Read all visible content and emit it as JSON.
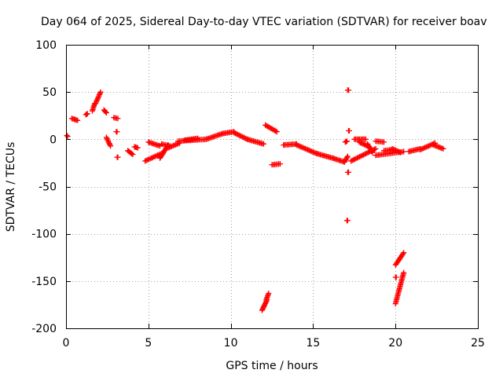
{
  "chart_data": {
    "type": "scatter",
    "title": "Day 064 of 2025, Sidereal Day-to-day VTEC variation (SDTVAR) for receiver boav",
    "xlabel": "GPS time / hours",
    "ylabel": "SDTVAR / TECUs",
    "xlim": [
      0,
      25
    ],
    "ylim": [
      -200,
      100
    ],
    "xticks": [
      0,
      5,
      10,
      15,
      20,
      25
    ],
    "yticks": [
      -200,
      -150,
      -100,
      -50,
      0,
      50,
      100
    ],
    "grid": true,
    "marker": "plus",
    "color": "#ff0000",
    "segments": [
      {
        "x": [
          0.05,
          0.1
        ],
        "y": [
          4,
          3
        ]
      },
      {
        "x": [
          0.35,
          0.7
        ],
        "y": [
          22,
          20
        ]
      },
      {
        "x": [
          1.2,
          1.3
        ],
        "y": [
          26,
          27
        ]
      },
      {
        "x": [
          1.6,
          1.75
        ],
        "y": [
          30,
          38
        ]
      },
      {
        "x": [
          1.8,
          2.1
        ],
        "y": [
          38,
          50
        ]
      },
      {
        "x": [
          2.3,
          2.45
        ],
        "y": [
          31,
          28
        ]
      },
      {
        "x": [
          2.45,
          2.7
        ],
        "y": [
          2,
          -7
        ]
      },
      {
        "x": [
          2.9,
          3.15
        ],
        "y": [
          23,
          22
        ]
      },
      {
        "x": [
          3.05,
          3.1
        ],
        "y": [
          8,
          8
        ]
      },
      {
        "x": [
          3.1,
          3.15
        ],
        "y": [
          -19,
          -19
        ]
      },
      {
        "x": [
          3.75,
          4.05
        ],
        "y": [
          -12,
          -16
        ]
      },
      {
        "x": [
          4.15,
          4.35
        ],
        "y": [
          -8,
          -9
        ]
      },
      {
        "x": [
          4.8,
          5.8
        ],
        "y": [
          -23,
          -15
        ]
      },
      {
        "x": [
          5.0,
          5.7
        ],
        "y": [
          -3,
          -7
        ]
      },
      {
        "x": [
          5.7,
          6.2
        ],
        "y": [
          -20,
          -6
        ]
      },
      {
        "x": [
          5.8,
          6.3
        ],
        "y": [
          -5,
          -7
        ]
      },
      {
        "x": [
          6.2,
          6.9
        ],
        "y": [
          -9,
          -4
        ]
      },
      {
        "x": [
          6.8,
          8.5
        ],
        "y": [
          -2,
          0
        ]
      },
      {
        "x": [
          7.2,
          8.0
        ],
        "y": [
          -1,
          1
        ]
      },
      {
        "x": [
          8.5,
          9.5
        ],
        "y": [
          0,
          6
        ]
      },
      {
        "x": [
          9.5,
          10.2
        ],
        "y": [
          6,
          8
        ]
      },
      {
        "x": [
          10.2,
          11.0
        ],
        "y": [
          7,
          0
        ]
      },
      {
        "x": [
          11.0,
          12.0
        ],
        "y": [
          0,
          -5
        ]
      },
      {
        "x": [
          11.9,
          12.2
        ],
        "y": [
          -181,
          -170
        ]
      },
      {
        "x": [
          12.15,
          12.3
        ],
        "y": [
          -170,
          -163
        ]
      },
      {
        "x": [
          12.1,
          12.8
        ],
        "y": [
          15,
          8
        ]
      },
      {
        "x": [
          12.5,
          13.0
        ],
        "y": [
          -27,
          -26
        ]
      },
      {
        "x": [
          13.2,
          14.0
        ],
        "y": [
          -6,
          -5
        ]
      },
      {
        "x": [
          14.0,
          15.2
        ],
        "y": [
          -6,
          -15
        ]
      },
      {
        "x": [
          15.2,
          16.2
        ],
        "y": [
          -15,
          -20
        ]
      },
      {
        "x": [
          16.2,
          16.9
        ],
        "y": [
          -20,
          -24
        ]
      },
      {
        "x": [
          16.9,
          17.1
        ],
        "y": [
          -24,
          -18
        ]
      },
      {
        "x": [
          16.95,
          17.05
        ],
        "y": [
          -3,
          -2
        ]
      },
      {
        "x": [
          17.1,
          17.15
        ],
        "y": [
          52,
          52
        ]
      },
      {
        "x": [
          17.15,
          17.2
        ],
        "y": [
          9,
          9
        ]
      },
      {
        "x": [
          17.1,
          17.15
        ],
        "y": [
          -35,
          -35
        ]
      },
      {
        "x": [
          17.05,
          17.1
        ],
        "y": [
          -86,
          -86
        ]
      },
      {
        "x": [
          17.5,
          18.2
        ],
        "y": [
          0,
          0
        ]
      },
      {
        "x": [
          17.3,
          18.8
        ],
        "y": [
          -23,
          -10
        ]
      },
      {
        "x": [
          17.8,
          18.4
        ],
        "y": [
          -3,
          -8
        ]
      },
      {
        "x": [
          18.3,
          18.6
        ],
        "y": [
          -5,
          -14
        ]
      },
      {
        "x": [
          18.8,
          19.3
        ],
        "y": [
          -2,
          -3
        ]
      },
      {
        "x": [
          18.8,
          20.5
        ],
        "y": [
          -17,
          -13
        ]
      },
      {
        "x": [
          19.3,
          19.8
        ],
        "y": [
          -12,
          -11
        ]
      },
      {
        "x": [
          19.8,
          20.3
        ],
        "y": [
          -10,
          -14
        ]
      },
      {
        "x": [
          20.0,
          20.5
        ],
        "y": [
          -133,
          -120
        ]
      },
      {
        "x": [
          20.0,
          20.05
        ],
        "y": [
          -146,
          -146
        ]
      },
      {
        "x": [
          20.0,
          20.5
        ],
        "y": [
          -174,
          -141
        ]
      },
      {
        "x": [
          20.8,
          21.5
        ],
        "y": [
          -13,
          -10
        ]
      },
      {
        "x": [
          21.5,
          22.4
        ],
        "y": [
          -11,
          -4
        ]
      },
      {
        "x": [
          22.3,
          22.9
        ],
        "y": [
          -6,
          -10
        ]
      }
    ]
  }
}
